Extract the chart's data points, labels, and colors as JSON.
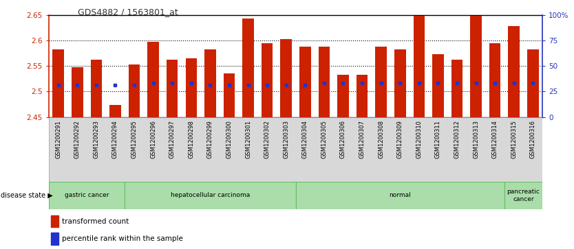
{
  "title": "GDS4882 / 1563801_at",
  "samples": [
    "GSM1200291",
    "GSM1200292",
    "GSM1200293",
    "GSM1200294",
    "GSM1200295",
    "GSM1200296",
    "GSM1200297",
    "GSM1200298",
    "GSM1200299",
    "GSM1200300",
    "GSM1200301",
    "GSM1200302",
    "GSM1200303",
    "GSM1200304",
    "GSM1200305",
    "GSM1200306",
    "GSM1200307",
    "GSM1200308",
    "GSM1200309",
    "GSM1200310",
    "GSM1200311",
    "GSM1200312",
    "GSM1200313",
    "GSM1200314",
    "GSM1200315",
    "GSM1200316"
  ],
  "red_bar_values": [
    2.583,
    2.548,
    2.562,
    2.473,
    2.553,
    2.597,
    2.563,
    2.565,
    2.583,
    2.535,
    2.643,
    2.595,
    2.603,
    2.588,
    2.588,
    2.533,
    2.533,
    2.588,
    2.583,
    2.648,
    2.573,
    2.562,
    2.648,
    2.595,
    2.628,
    2.582
  ],
  "blue_dot_values": [
    2.513,
    2.513,
    2.513,
    2.513,
    2.513,
    2.517,
    2.517,
    2.517,
    2.513,
    2.513,
    2.513,
    2.513,
    2.513,
    2.513,
    2.517,
    2.517,
    2.517,
    2.517,
    2.517,
    2.517,
    2.517,
    2.517,
    2.517,
    2.517,
    2.517,
    2.517
  ],
  "ylim": [
    2.45,
    2.65
  ],
  "yticks": [
    2.45,
    2.5,
    2.55,
    2.6,
    2.65
  ],
  "ytick_labels": [
    "2.45",
    "2.5",
    "2.55",
    "2.6",
    "2.65"
  ],
  "right_yticks": [
    0,
    25,
    50,
    75,
    100
  ],
  "right_ytick_labels": [
    "0",
    "25",
    "50",
    "75",
    "100%"
  ],
  "disease_groups": [
    {
      "label": "gastric cancer",
      "start": 0,
      "end": 3
    },
    {
      "label": "hepatocellular carcinoma",
      "start": 4,
      "end": 12
    },
    {
      "label": "normal",
      "start": 13,
      "end": 23
    },
    {
      "label": "pancreatic\ncancer",
      "start": 24,
      "end": 25
    }
  ],
  "bar_color": "#cc2200",
  "dot_color": "#2233cc",
  "bg_color": "#ffffff",
  "plot_bg": "#ffffff",
  "grid_color": "#000000",
  "axis_color_left": "#cc2200",
  "axis_color_right": "#2233bb",
  "title_color": "#333333",
  "legend_red_label": "transformed count",
  "legend_blue_label": "percentile rank within the sample",
  "bar_width": 0.6,
  "green_color": "#aaddaa",
  "separator_color": "#66bb66"
}
